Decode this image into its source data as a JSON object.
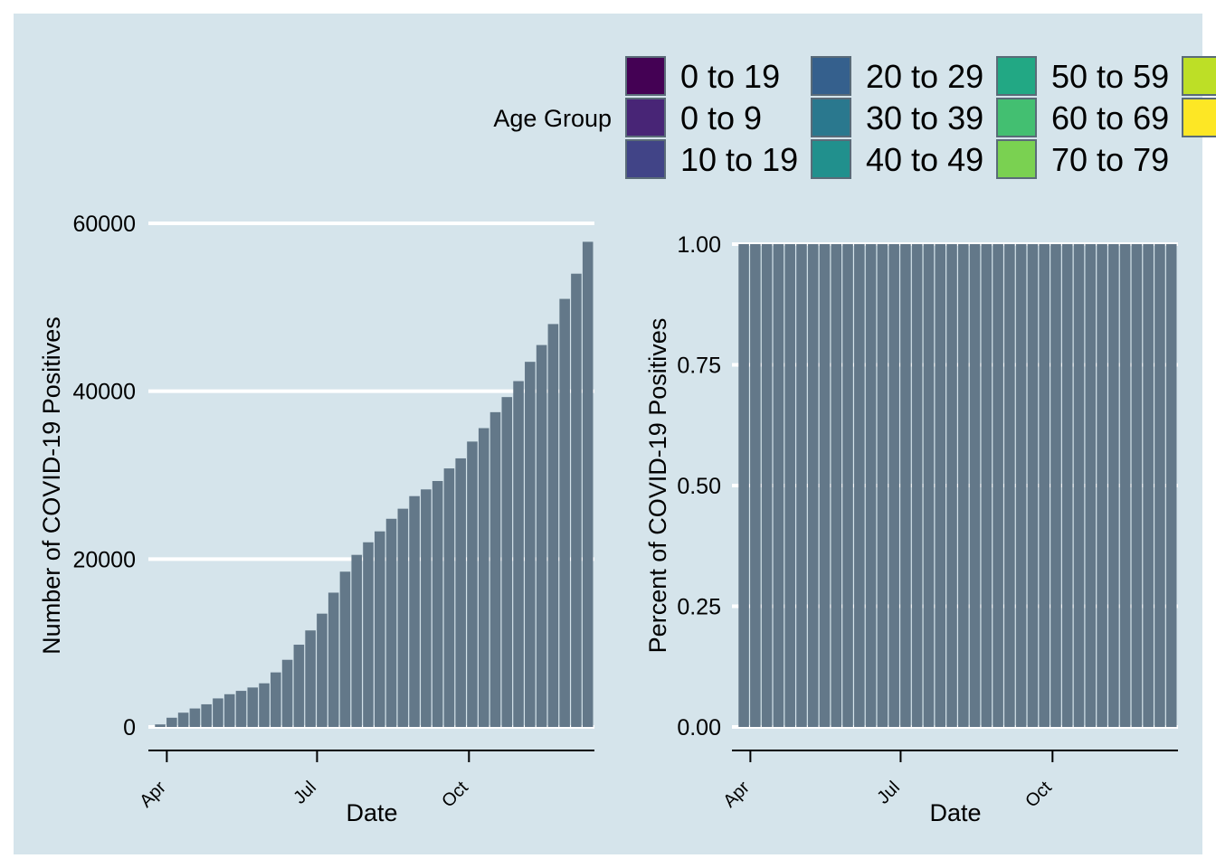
{
  "legend": {
    "title": "Age Group",
    "items": [
      {
        "label": "0 to 19",
        "color": "#440154"
      },
      {
        "label": "0 to 9",
        "color": "#482576"
      },
      {
        "label": "10 to 19",
        "color": "#414487"
      },
      {
        "label": "20 to 29",
        "color": "#35608d"
      },
      {
        "label": "30 to 39",
        "color": "#2a788e"
      },
      {
        "label": "40 to 49",
        "color": "#21908d"
      },
      {
        "label": "50 to 59",
        "color": "#22a884"
      },
      {
        "label": "60 to 69",
        "color": "#43bf71"
      },
      {
        "label": "70 to 79",
        "color": "#7ad151"
      },
      {
        "label": "",
        "color": "#bddf26"
      },
      {
        "label": "",
        "color": "#fde725"
      }
    ]
  },
  "chart_data": [
    {
      "type": "bar",
      "stacked": true,
      "xlabel": "Date",
      "ylabel": "Number of COVID-19 Positives",
      "ylim": [
        0,
        60000
      ],
      "yticks": [
        0,
        20000,
        40000,
        60000
      ],
      "xlim": [
        "2020-03-17",
        "2020-12-16"
      ],
      "xticks": [
        {
          "date": "2020-04-01",
          "label": "Apr"
        },
        {
          "date": "2020-07-01",
          "label": "Jul"
        },
        {
          "date": "2020-10-01",
          "label": "Oct"
        }
      ],
      "grid": "horizontal",
      "bar_color": "#637889",
      "dates": [
        "2020-03-28",
        "2020-04-04",
        "2020-04-11",
        "2020-04-18",
        "2020-04-25",
        "2020-05-02",
        "2020-05-09",
        "2020-05-16",
        "2020-05-23",
        "2020-05-30",
        "2020-06-06",
        "2020-06-13",
        "2020-06-20",
        "2020-06-27",
        "2020-07-04",
        "2020-07-11",
        "2020-07-18",
        "2020-07-25",
        "2020-08-01",
        "2020-08-08",
        "2020-08-15",
        "2020-08-22",
        "2020-08-29",
        "2020-09-05",
        "2020-09-12",
        "2020-09-19",
        "2020-09-26",
        "2020-10-03",
        "2020-10-10",
        "2020-10-17",
        "2020-10-24",
        "2020-10-31",
        "2020-11-07",
        "2020-11-14",
        "2020-11-21",
        "2020-11-28",
        "2020-12-05",
        "2020-12-12"
      ],
      "values": [
        300,
        1100,
        1700,
        2200,
        2700,
        3400,
        3900,
        4300,
        4700,
        5200,
        6500,
        8000,
        9800,
        11500,
        13500,
        16000,
        18500,
        20500,
        22000,
        23300,
        24800,
        26000,
        27500,
        28300,
        29300,
        30800,
        32000,
        34000,
        35600,
        37500,
        39300,
        41200,
        43500,
        45500,
        48000,
        51000,
        54000,
        57800
      ]
    },
    {
      "type": "bar",
      "stacked": true,
      "xlabel": "Date",
      "ylabel": "Percent of COVID-19 Positives",
      "ylim": [
        0,
        1
      ],
      "yticks": [
        "0.00",
        "0.25",
        "0.50",
        "0.75",
        "1.00"
      ],
      "xlim": [
        "2020-03-17",
        "2020-12-16"
      ],
      "xticks": [
        {
          "date": "2020-04-01",
          "label": "Apr"
        },
        {
          "date": "2020-07-01",
          "label": "Jul"
        },
        {
          "date": "2020-10-01",
          "label": "Oct"
        }
      ],
      "grid": "horizontal",
      "bar_color": "#637889",
      "dates": [
        "2020-03-28",
        "2020-04-04",
        "2020-04-11",
        "2020-04-18",
        "2020-04-25",
        "2020-05-02",
        "2020-05-09",
        "2020-05-16",
        "2020-05-23",
        "2020-05-30",
        "2020-06-06",
        "2020-06-13",
        "2020-06-20",
        "2020-06-27",
        "2020-07-04",
        "2020-07-11",
        "2020-07-18",
        "2020-07-25",
        "2020-08-01",
        "2020-08-08",
        "2020-08-15",
        "2020-08-22",
        "2020-08-29",
        "2020-09-05",
        "2020-09-12",
        "2020-09-19",
        "2020-09-26",
        "2020-10-03",
        "2020-10-10",
        "2020-10-17",
        "2020-10-24",
        "2020-10-31",
        "2020-11-07",
        "2020-11-14",
        "2020-11-21",
        "2020-11-28",
        "2020-12-05",
        "2020-12-12"
      ],
      "values": [
        1,
        1,
        1,
        1,
        1,
        1,
        1,
        1,
        1,
        1,
        1,
        1,
        1,
        1,
        1,
        1,
        1,
        1,
        1,
        1,
        1,
        1,
        1,
        1,
        1,
        1,
        1,
        1,
        1,
        1,
        1,
        1,
        1,
        1,
        1,
        1,
        1,
        1
      ]
    }
  ]
}
